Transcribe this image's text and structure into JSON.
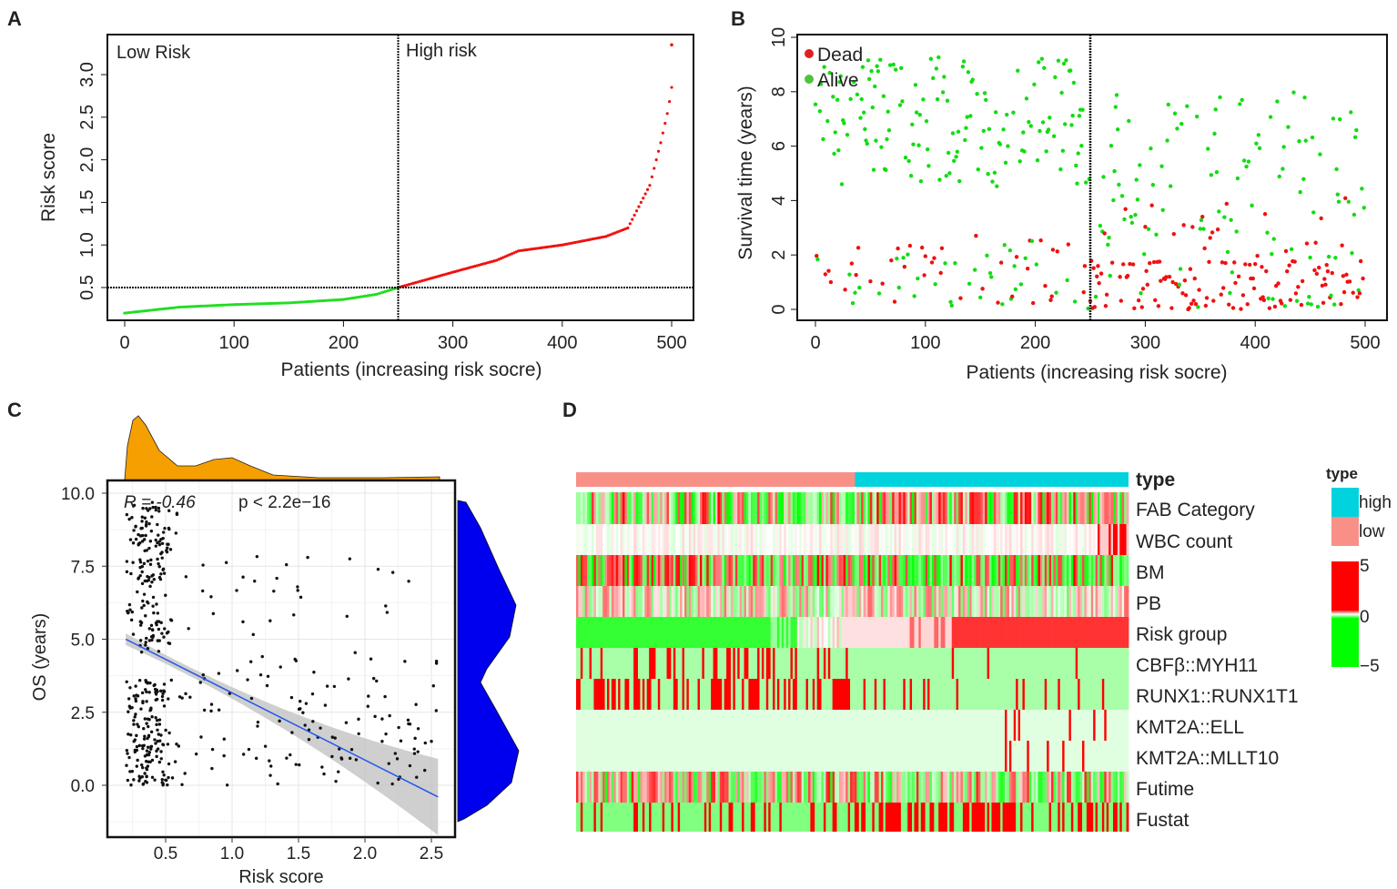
{
  "panels": {
    "A": {
      "letter": "A",
      "type": "line",
      "ylabel": "Risk score",
      "xlabel": "Patients (increasing risk socre)",
      "low_label": "Low Risk",
      "high_label": "High risk",
      "xticks": [
        "0",
        "100",
        "200",
        "300",
        "400",
        "500"
      ],
      "yticks": [
        "0.5",
        "1.0",
        "1.5",
        "2.0",
        "2.5",
        "3.0"
      ],
      "cutoff_patient": 250,
      "cutoff_score": 0.5,
      "curve": [
        [
          0,
          0.2
        ],
        [
          50,
          0.27
        ],
        [
          100,
          0.3
        ],
        [
          150,
          0.32
        ],
        [
          200,
          0.36
        ],
        [
          230,
          0.42
        ],
        [
          250,
          0.5
        ],
        [
          300,
          0.68
        ],
        [
          340,
          0.82
        ],
        [
          360,
          0.93
        ],
        [
          400,
          1.0
        ],
        [
          440,
          1.1
        ],
        [
          460,
          1.2
        ],
        [
          470,
          1.45
        ],
        [
          480,
          1.7
        ],
        [
          490,
          2.2
        ],
        [
          497,
          2.6
        ],
        [
          500,
          2.85
        ]
      ],
      "outlier": [
        500,
        3.35
      ],
      "low_color": "#22dd22",
      "high_color": "#ee1111"
    },
    "B": {
      "letter": "B",
      "type": "scatter",
      "ylabel": "Survival time (years)",
      "xlabel": "Patients (increasing risk socre)",
      "xticks": [
        "0",
        "100",
        "200",
        "300",
        "400",
        "500"
      ],
      "yticks": [
        "0",
        "2",
        "4",
        "6",
        "8",
        "10"
      ],
      "legend": [
        {
          "label": "Dead",
          "color": "#e02020"
        },
        {
          "label": "Alive",
          "color": "#4cc43a"
        }
      ],
      "cutoff_patient": 250,
      "n_patients": 500,
      "alive_fraction_low": 0.8,
      "alive_fraction_high": 0.45,
      "dead_color": "#ee1111",
      "alive_color": "#11dd11"
    },
    "C": {
      "letter": "C",
      "type": "scatter",
      "ylabel": "OS (years)",
      "xlabel": "Risk score",
      "xticks": [
        "0.5",
        "1.0",
        "1.5",
        "2.0",
        "2.5"
      ],
      "yticks": [
        "0.0",
        "2.5",
        "5.0",
        "7.5",
        "10.0"
      ],
      "xlim": [
        0.13,
        2.62
      ],
      "ylim": [
        -1.6,
        10.4
      ],
      "stat_r": "R =  -0.46",
      "stat_p": "p < 2.2e−16",
      "regression": {
        "x0": 0.2,
        "y0": 5.0,
        "x1": 2.55,
        "y1": -0.4
      },
      "top_density_color": "#f5a000",
      "right_density_color": "#0000ee"
    },
    "D": {
      "letter": "D",
      "type": "heatmap",
      "type_row_label": "type",
      "rows": [
        "FAB Category",
        "WBC count",
        "BM",
        "PB",
        "Risk group",
        "CBFβ::MYH11",
        "RUNX1::RUNX1T1",
        "KMT2A::ELL",
        "KMT2A::MLLT10",
        "Futime",
        "Fustat"
      ],
      "legend_title": "type",
      "legend_types": [
        {
          "label": "high",
          "color": "#00d2de"
        },
        {
          "label": "low",
          "color": "#f89088"
        }
      ],
      "scale_labels": [
        "5",
        "0",
        "−5"
      ],
      "scale_range": [
        -5,
        5
      ]
    }
  }
}
